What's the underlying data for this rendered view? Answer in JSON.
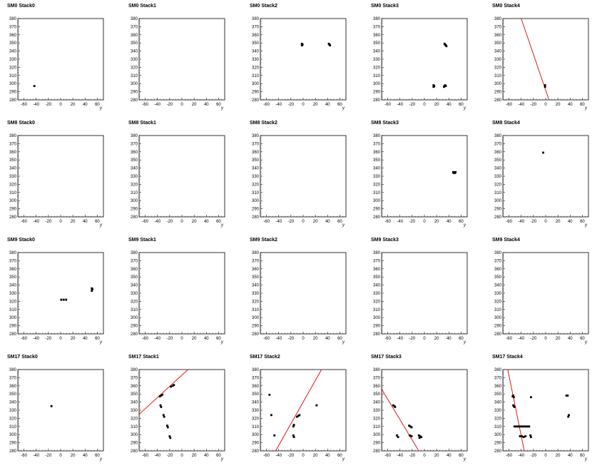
{
  "x_axis_label": "y",
  "chart_data": [
    {
      "title": "SM0 Stack0",
      "type": "scatter",
      "xlim": [
        -70,
        70
      ],
      "ylim": [
        280,
        380
      ],
      "points": [
        [
          -43,
          297
        ]
      ],
      "lines": []
    },
    {
      "title": "SM0 Stack1",
      "type": "scatter",
      "xlim": [
        -70,
        70
      ],
      "ylim": [
        280,
        380
      ],
      "points": [],
      "lines": []
    },
    {
      "title": "SM0 Stack2",
      "type": "scatter",
      "xlim": [
        -70,
        70
      ],
      "ylim": [
        280,
        380
      ],
      "points": [
        [
          -2,
          349
        ],
        [
          -1,
          348
        ],
        [
          -2,
          347
        ],
        [
          42,
          349
        ],
        [
          43,
          348
        ],
        [
          44,
          347
        ]
      ],
      "lines": []
    },
    {
      "title": "SM0 Stack3",
      "type": "scatter",
      "xlim": [
        -70,
        70
      ],
      "ylim": [
        280,
        380
      ],
      "points": [
        [
          15,
          298
        ],
        [
          16,
          297
        ],
        [
          15,
          296
        ],
        [
          33,
          297
        ],
        [
          34,
          298
        ],
        [
          35,
          297
        ],
        [
          32,
          296
        ],
        [
          33,
          349
        ],
        [
          34,
          348
        ],
        [
          35,
          347
        ],
        [
          36,
          346
        ]
      ],
      "lines": []
    },
    {
      "title": "SM0 Stack4",
      "type": "scatter",
      "xlim": [
        -70,
        70
      ],
      "ylim": [
        280,
        380
      ],
      "points": [
        [
          -1,
          298
        ],
        [
          -1,
          296
        ]
      ],
      "lines": [
        [
          [
            -40,
            380
          ],
          [
            5,
            281
          ]
        ]
      ]
    },
    {
      "title": "SM8 Stack0",
      "type": "scatter",
      "xlim": [
        -70,
        70
      ],
      "ylim": [
        280,
        380
      ],
      "points": [],
      "lines": []
    },
    {
      "title": "SM8 Stack1",
      "type": "scatter",
      "xlim": [
        -70,
        70
      ],
      "ylim": [
        280,
        380
      ],
      "points": [],
      "lines": []
    },
    {
      "title": "SM8 Stack2",
      "type": "scatter",
      "xlim": [
        -70,
        70
      ],
      "ylim": [
        280,
        380
      ],
      "points": [],
      "lines": []
    },
    {
      "title": "SM8 Stack3",
      "type": "scatter",
      "xlim": [
        -70,
        70
      ],
      "ylim": [
        280,
        380
      ],
      "points": [
        [
          47,
          335
        ],
        [
          49,
          335
        ],
        [
          51,
          335
        ],
        [
          48,
          334
        ],
        [
          50,
          334
        ]
      ],
      "lines": []
    },
    {
      "title": "SM8 Stack4",
      "type": "scatter",
      "xlim": [
        -70,
        70
      ],
      "ylim": [
        280,
        380
      ],
      "points": [
        [
          -4,
          359
        ]
      ],
      "lines": []
    },
    {
      "title": "SM9 Stack0",
      "type": "scatter",
      "xlim": [
        -70,
        70
      ],
      "ylim": [
        280,
        380
      ],
      "points": [
        [
          1,
          322
        ],
        [
          5,
          322
        ],
        [
          9,
          322
        ],
        [
          51,
          336
        ],
        [
          52,
          335
        ],
        [
          51,
          333
        ]
      ],
      "lines": []
    },
    {
      "title": "SM9 Stack1",
      "type": "scatter",
      "xlim": [
        -70,
        70
      ],
      "ylim": [
        280,
        380
      ],
      "points": [],
      "lines": []
    },
    {
      "title": "SM9 Stack2",
      "type": "scatter",
      "xlim": [
        -70,
        70
      ],
      "ylim": [
        280,
        380
      ],
      "points": [],
      "lines": []
    },
    {
      "title": "SM9 Stack3",
      "type": "scatter",
      "xlim": [
        -70,
        70
      ],
      "ylim": [
        280,
        380
      ],
      "points": [],
      "lines": []
    },
    {
      "title": "SM9 Stack4",
      "type": "scatter",
      "xlim": [
        -70,
        70
      ],
      "ylim": [
        280,
        380
      ],
      "points": [],
      "lines": []
    },
    {
      "title": "SM17 Stack0",
      "type": "scatter",
      "xlim": [
        -70,
        70
      ],
      "ylim": [
        280,
        380
      ],
      "points": [
        [
          -15,
          335
        ]
      ],
      "lines": []
    },
    {
      "title": "SM17 Stack1",
      "type": "scatter",
      "xlim": [
        -70,
        70
      ],
      "ylim": [
        280,
        380
      ],
      "points": [
        [
          -36,
          347
        ],
        [
          -34,
          348
        ],
        [
          -32,
          349
        ],
        [
          -18,
          359
        ],
        [
          -15,
          360
        ],
        [
          -13,
          361
        ],
        [
          -35,
          336
        ],
        [
          -34,
          334
        ],
        [
          -30,
          324
        ],
        [
          -29,
          322
        ],
        [
          -24,
          311
        ],
        [
          -23,
          309
        ],
        [
          -20,
          298
        ],
        [
          -19,
          296
        ]
      ],
      "lines": [
        [
          [
            -70,
            325
          ],
          [
            10,
            380
          ]
        ]
      ]
    },
    {
      "title": "SM17 Stack2",
      "type": "scatter",
      "xlim": [
        -70,
        70
      ],
      "ylim": [
        280,
        380
      ],
      "points": [
        [
          -55,
          349
        ],
        [
          -52,
          324
        ],
        [
          -47,
          299
        ],
        [
          -16,
          310
        ],
        [
          -15,
          312
        ],
        [
          -10,
          322
        ],
        [
          -8,
          323
        ],
        [
          -6,
          324
        ],
        [
          -16,
          299
        ],
        [
          -15,
          297
        ],
        [
          22,
          336
        ]
      ],
      "lines": [
        [
          [
            -45,
            280
          ],
          [
            30,
            380
          ]
        ]
      ]
    },
    {
      "title": "SM17 Stack3",
      "type": "scatter",
      "xlim": [
        -70,
        70
      ],
      "ylim": [
        280,
        380
      ],
      "points": [
        [
          -51,
          336
        ],
        [
          -49,
          335
        ],
        [
          -48,
          334
        ],
        [
          -45,
          299
        ],
        [
          -43,
          297
        ],
        [
          -25,
          311
        ],
        [
          -23,
          310
        ],
        [
          -21,
          309
        ],
        [
          -24,
          299
        ],
        [
          -21,
          298
        ],
        [
          -9,
          299
        ],
        [
          -7,
          298
        ],
        [
          -5,
          297
        ],
        [
          -8,
          296
        ]
      ],
      "lines": [
        [
          [
            -70,
            356
          ],
          [
            -10,
            281
          ]
        ]
      ]
    },
    {
      "title": "SM17 Stack4",
      "type": "scatter",
      "xlim": [
        -70,
        70
      ],
      "ylim": [
        280,
        380
      ],
      "points": [
        [
          -54,
          347
        ],
        [
          -53,
          348
        ],
        [
          -52,
          346
        ],
        [
          -53,
          336
        ],
        [
          -52,
          335
        ],
        [
          -51,
          334
        ],
        [
          -24,
          346
        ],
        [
          34,
          348
        ],
        [
          36,
          348
        ],
        [
          38,
          324
        ],
        [
          37,
          322
        ],
        [
          -51,
          310
        ],
        [
          -48,
          310
        ],
        [
          -45,
          310
        ],
        [
          -42,
          310
        ],
        [
          -39,
          310
        ],
        [
          -36,
          310
        ],
        [
          -33,
          310
        ],
        [
          -30,
          310
        ],
        [
          -27,
          310
        ],
        [
          -42,
          298
        ],
        [
          -39,
          298
        ],
        [
          -36,
          297
        ],
        [
          -33,
          298
        ],
        [
          -25,
          299
        ],
        [
          -24,
          297
        ]
      ],
      "lines": [
        [
          [
            -62,
            380
          ],
          [
            -35,
            280
          ]
        ]
      ]
    }
  ]
}
